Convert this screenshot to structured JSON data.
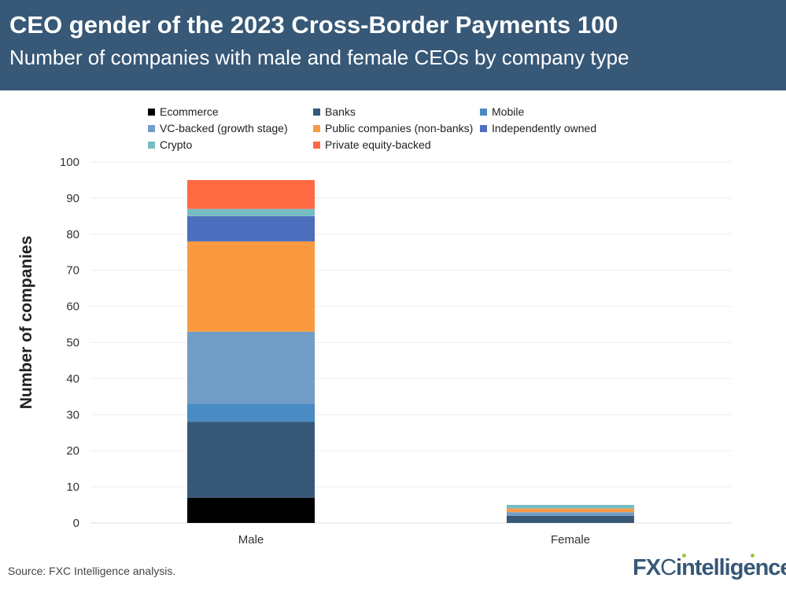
{
  "header": {
    "title": "CEO gender of the 2023 Cross-Border Payments 100",
    "subtitle": "Number of companies with male and female CEOs by company type"
  },
  "chart_data": {
    "type": "bar",
    "stacked": true,
    "categories": [
      "Male",
      "Female"
    ],
    "ylabel": "Number of companies",
    "xlabel": "",
    "ylim": [
      0,
      100
    ],
    "yticks": [
      0,
      10,
      20,
      30,
      40,
      50,
      60,
      70,
      80,
      90,
      100
    ],
    "grid": true,
    "legend_position": "top",
    "series": [
      {
        "name": "Ecommerce",
        "color": "#000000",
        "values": [
          7,
          0
        ]
      },
      {
        "name": "Banks",
        "color": "#375877",
        "values": [
          21,
          2
        ]
      },
      {
        "name": "Mobile",
        "color": "#4a8bc4",
        "values": [
          5,
          0
        ]
      },
      {
        "name": "VC-backed (growth stage)",
        "color": "#729dc6",
        "values": [
          20,
          1
        ]
      },
      {
        "name": "Public companies (non-banks)",
        "color": "#fa9a40",
        "values": [
          25,
          1
        ]
      },
      {
        "name": "Independently owned",
        "color": "#4e6fbd",
        "values": [
          7,
          0
        ]
      },
      {
        "name": "Crypto",
        "color": "#78bcc4",
        "values": [
          2,
          1
        ]
      },
      {
        "name": "Private equity-backed",
        "color": "#ff6a43",
        "values": [
          8,
          0
        ]
      }
    ]
  },
  "footer": {
    "source": "Source: FXC Intelligence analysis.",
    "logo": "FXCintelligence"
  }
}
